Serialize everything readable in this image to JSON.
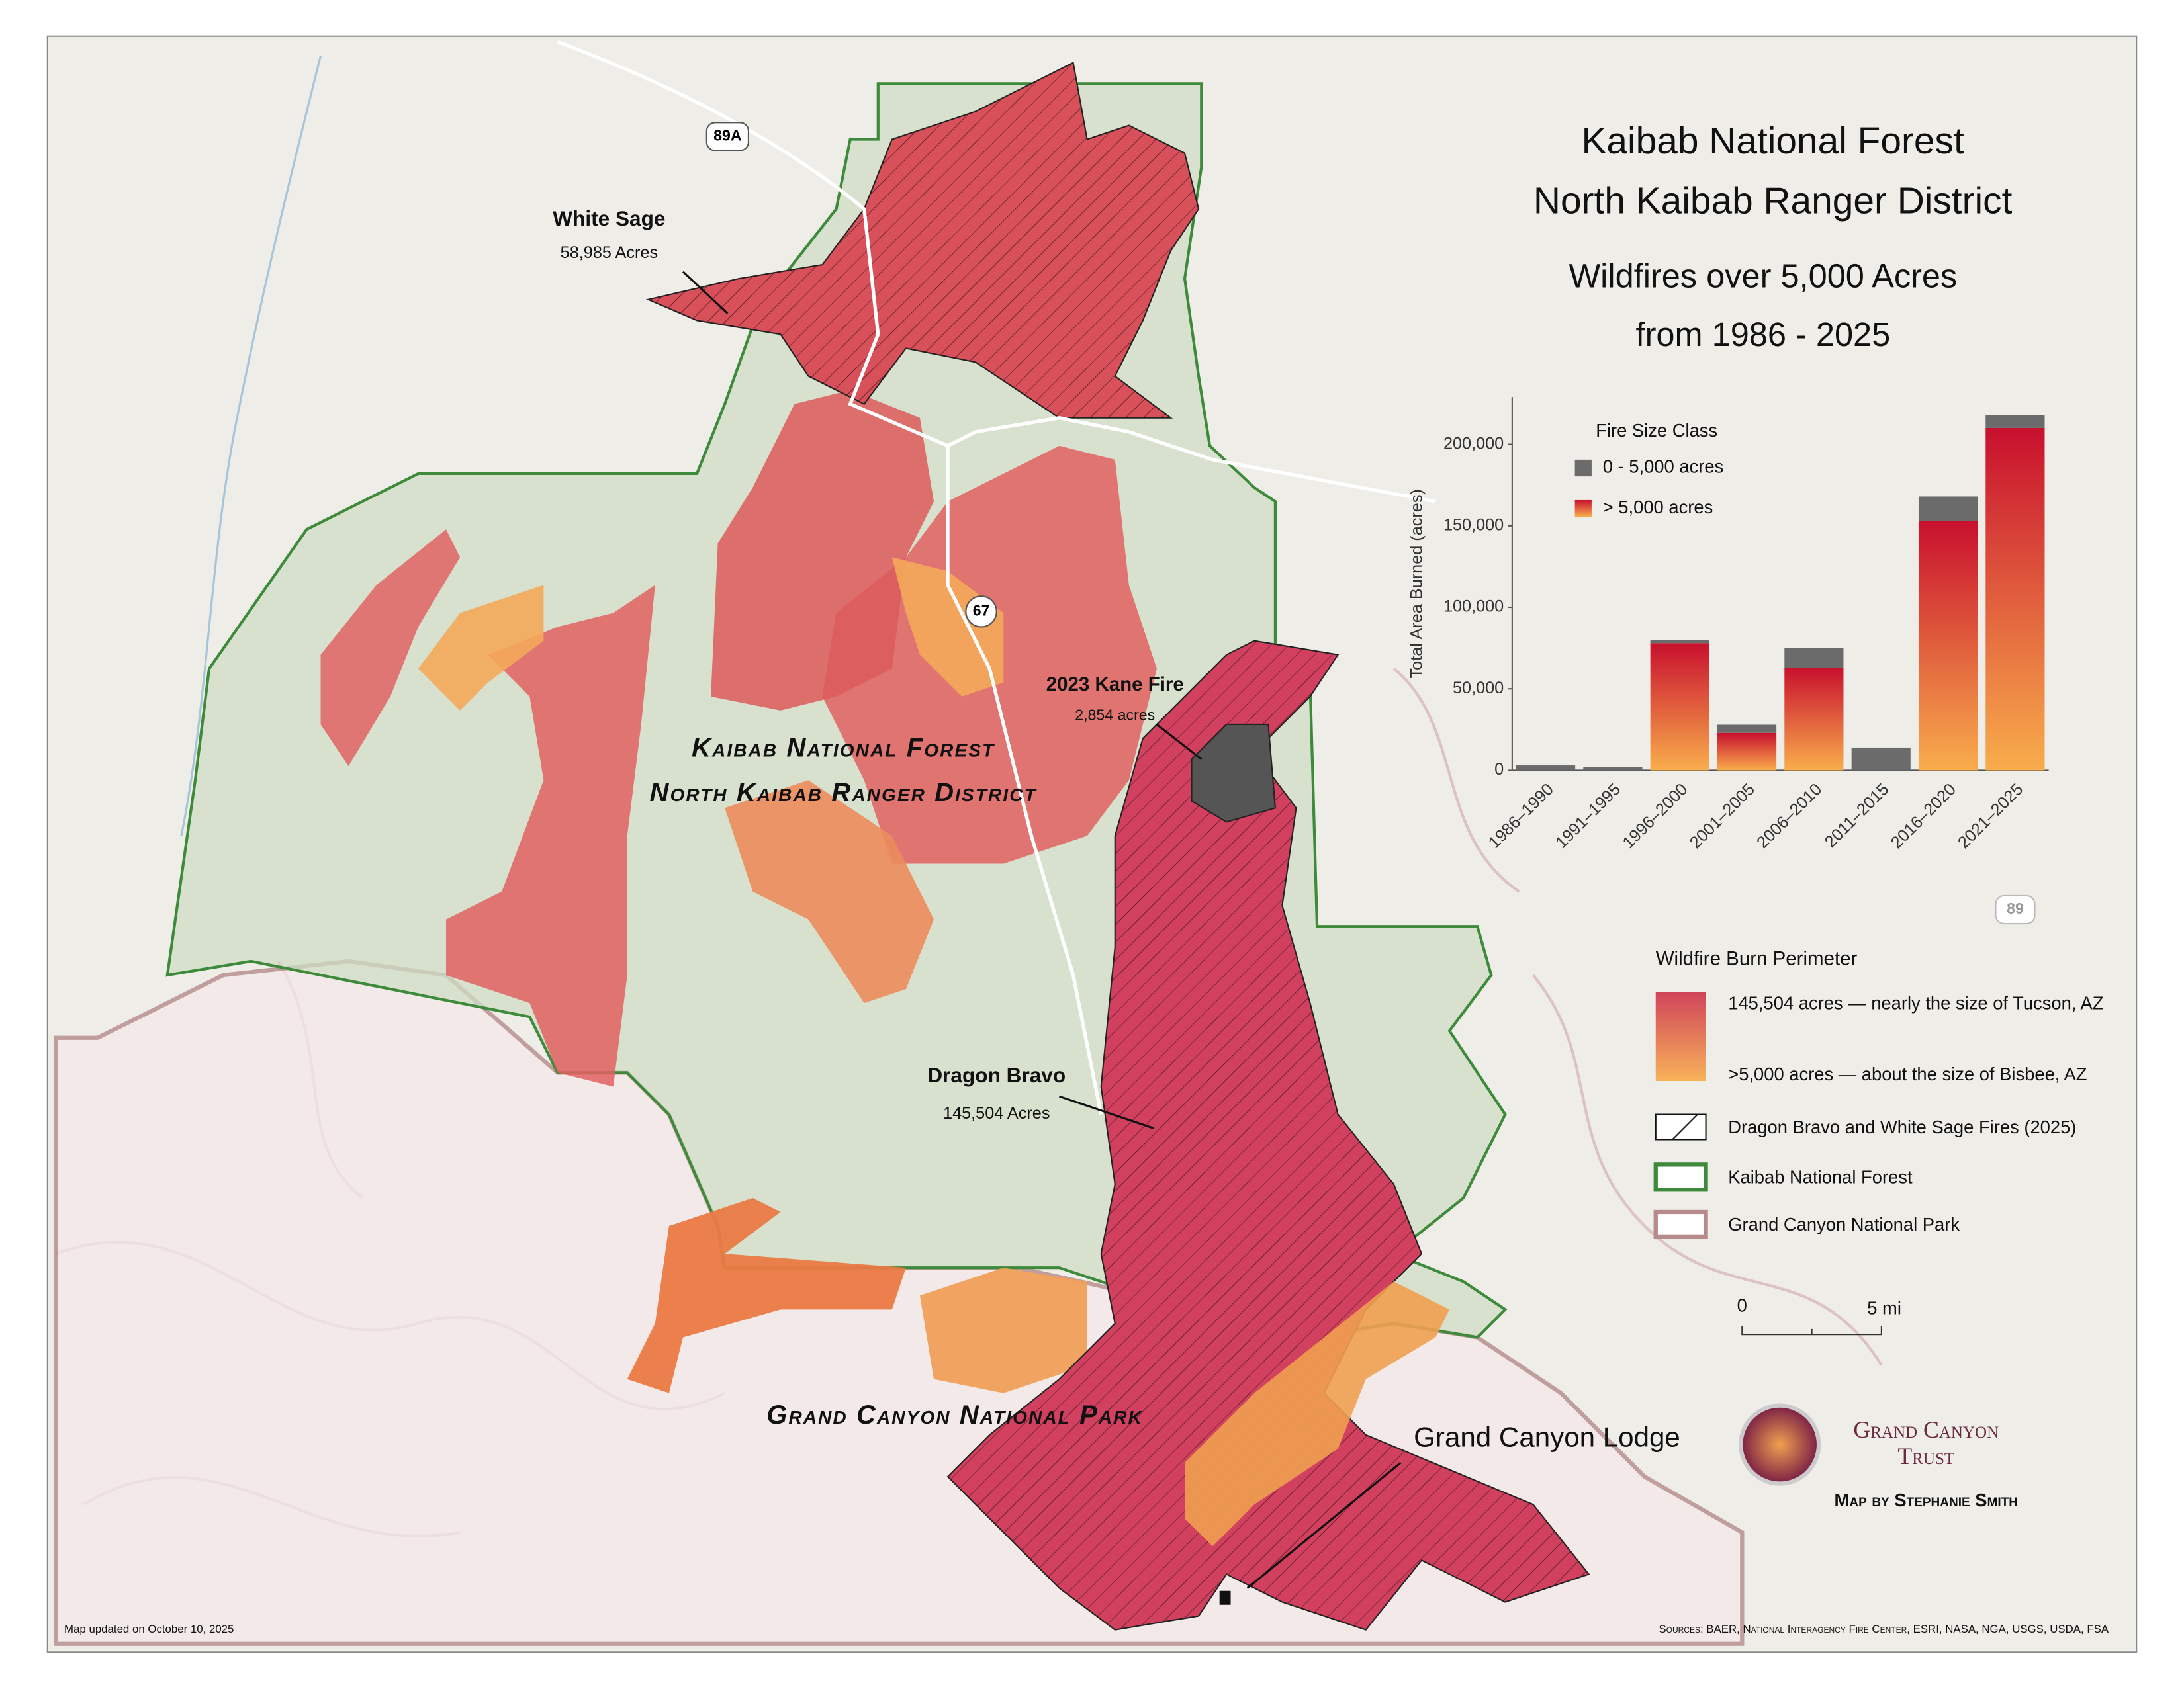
{
  "header": {
    "title_line1": "Kaibab National Forest",
    "title_line2": "North Kaibab Ranger District",
    "subtitle_line1": "Wildfires over 5,000 Acres",
    "subtitle_line2": "from 1986 - 2025"
  },
  "map_labels": {
    "white_sage": "White Sage",
    "white_sage_acres": "58,985 Acres",
    "kane_fire": "2023 Kane Fire",
    "kane_acres": "2,854 acres",
    "forest_line1": "Kaibab National Forest",
    "forest_line2": "North Kaibab Ranger District",
    "dragon_bravo": "Dragon Bravo",
    "dragon_bravo_acres": "145,504 Acres",
    "park": "Grand Canyon National Park",
    "lodge": "Grand Canyon Lodge",
    "route_89a": "89A",
    "route_67": "67",
    "route_89": "89"
  },
  "legend": {
    "title": "Wildfire Burn Perimeter",
    "high": "145,504 acres — nearly the size of Tucson, AZ",
    "low": ">5,000 acres — about the size of Bisbee, AZ",
    "hatched": "Dragon Bravo and White Sage Fires (2025)",
    "forest": "Kaibab National Forest",
    "park": "Grand Canyon National Park"
  },
  "scale_bar": {
    "start": "0",
    "end": "5 mi"
  },
  "credits": {
    "org_line1": "Grand Canyon",
    "org_line2": "Trust",
    "author": "Map by Stephanie Smith",
    "updated": "Map updated on October 10, 2025",
    "sources": "Sources: BAER, National Interagency Fire Center, ESRI, NASA, NGA, USGS, USDA, FSA"
  },
  "chart_data": {
    "type": "bar",
    "stacked": true,
    "y_label": "Total Area Burned (acres)",
    "legend_title": "Fire Size Class",
    "categories": [
      "1986–1990",
      "1991–1995",
      "1996–2000",
      "2001–2005",
      "2006–2010",
      "2011–2015",
      "2016–2020",
      "2021–2025"
    ],
    "series": [
      {
        "name": "> 5,000 acres",
        "color": "#c8102e",
        "gradient": [
          "#f9ad4c",
          "#c8102e"
        ],
        "values": [
          0,
          0,
          78000,
          23000,
          63000,
          0,
          153000,
          210000
        ]
      },
      {
        "name": "0 - 5,000 acres",
        "color": "#6b6b6b",
        "values": [
          3000,
          2000,
          2000,
          5000,
          12000,
          14000,
          15000,
          8000
        ]
      }
    ],
    "ylim": [
      0,
      229000
    ],
    "yticks": [
      0,
      {
        "value": 50000,
        "label": "50,000"
      },
      {
        "value": 100000,
        "label": "100,000"
      },
      {
        "value": 150000,
        "label": "150,000"
      },
      {
        "value": 200000,
        "label": "200,000"
      }
    ]
  }
}
